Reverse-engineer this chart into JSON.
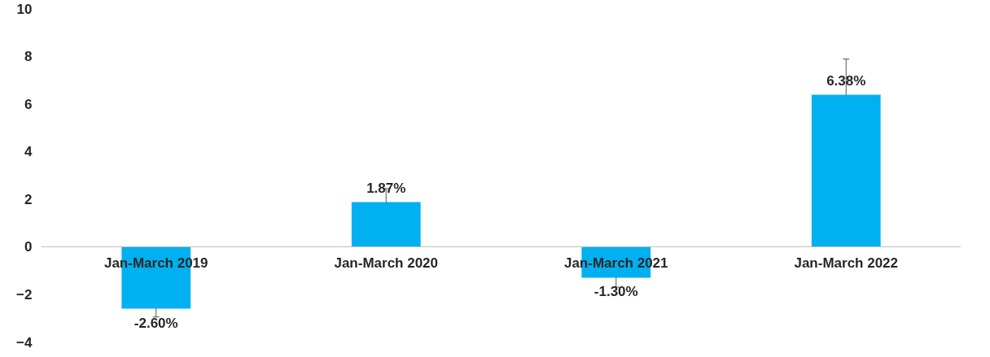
{
  "chart_data": {
    "type": "bar",
    "categories": [
      "Jan-March 2019",
      "Jan-March 2020",
      "Jan-March 2021",
      "Jan-March 2022"
    ],
    "values": [
      -2.6,
      1.87,
      -1.3,
      6.38
    ],
    "errors": [
      0.35,
      0.57,
      0.4,
      1.5
    ],
    "value_labels": [
      "-2.60%",
      "1.87%",
      "-1.30%",
      "6.38%"
    ],
    "color": "#00b0f0",
    "ylim": [
      -4,
      10
    ],
    "yticks": [
      -4,
      -2,
      0,
      2,
      4,
      6,
      8,
      10
    ],
    "grid": false
  }
}
